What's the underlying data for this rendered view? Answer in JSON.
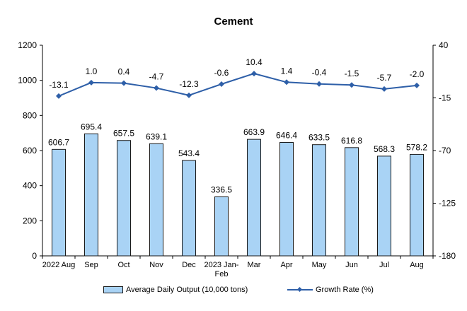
{
  "chart_data": {
    "type": "bar",
    "title": "Cement",
    "categories": [
      "2022 Aug",
      "Sep",
      "Oct",
      "Nov",
      "Dec",
      "2023 Jan-Feb",
      "Mar",
      "Apr",
      "May",
      "Jun",
      "Jul",
      "Aug"
    ],
    "series": [
      {
        "name": "Average Daily Output (10,000 tons)",
        "type": "bar",
        "axis": "left",
        "color": "#a9d3f5",
        "values": [
          606.7,
          695.4,
          657.5,
          639.1,
          543.4,
          336.5,
          663.9,
          646.4,
          633.5,
          616.8,
          568.3,
          578.2
        ],
        "labels": [
          "606.7",
          "695.4",
          "657.5",
          "639.1",
          "543.4",
          "336.5",
          "663.9",
          "646.4",
          "633.5",
          "616.8",
          "568.3",
          "578.2"
        ]
      },
      {
        "name": "Growth Rate (%)",
        "type": "line",
        "axis": "right",
        "color": "#2e5fa8",
        "values": [
          -13.1,
          1.0,
          0.4,
          -4.7,
          -12.3,
          -0.6,
          10.4,
          1.4,
          -0.4,
          -1.5,
          -5.7,
          -2.0
        ],
        "labels": [
          "-13.1",
          "1.0",
          "0.4",
          "-4.7",
          "-12.3",
          "-0.6",
          "10.4",
          "1.4",
          "-0.4",
          "-1.5",
          "-5.7",
          "-2.0"
        ]
      }
    ],
    "y_left": {
      "min": 0,
      "max": 1200,
      "ticks": [
        "0",
        "200",
        "400",
        "600",
        "800",
        "1000",
        "1200"
      ]
    },
    "y_right": {
      "min": -180,
      "max": 40,
      "ticks": [
        "-180",
        "-125",
        "-70",
        "-15",
        "40"
      ]
    },
    "grid": false,
    "legend_position": "bottom"
  }
}
